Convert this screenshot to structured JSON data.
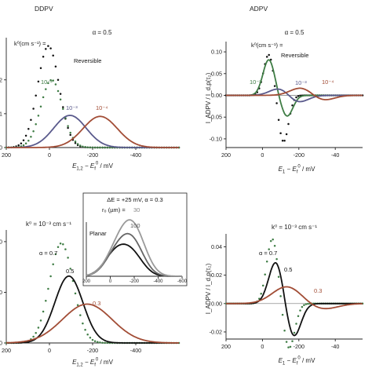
{
  "headers": {
    "left": "DDPV",
    "right": "ADPV"
  },
  "colors": {
    "black": "#111111",
    "green": "#3f7d45",
    "blue": "#5a5a8c",
    "red": "#a24d36",
    "gray": "#888888"
  },
  "chart_data": [
    {
      "id": "tl",
      "type": "line",
      "title": "α = 0.5",
      "xlabel_main": "E",
      "xlabel_sub": "1,2",
      "xlabel_mid": " − E",
      "xlabel_sub2": "f",
      "xlabel_sup2": "0",
      "xlabel_tail": " / mV",
      "ylabel": "",
      "x": [
        200,
        0,
        -200,
        -400,
        -600
      ],
      "xticks": [
        "200",
        "0",
        "-200",
        "-400"
      ],
      "xlim": [
        200,
        -600
      ],
      "ylim": [
        0,
        0.32
      ],
      "yticks": [
        ".2",
        ".1",
        "0"
      ],
      "ytick_values": [
        0.2,
        0.1,
        0
      ],
      "series": [
        {
          "name": "Reversible",
          "label": "Reversible",
          "color": "#111111",
          "dotted": true,
          "values": [
            0.0,
            0.3,
            0.0,
            0.0,
            0.0
          ],
          "shape": {
            "center": 5,
            "amp": 0.3,
            "sigma": 50
          }
        },
        {
          "name": "10⁻²",
          "label": "10⁻²",
          "color": "#3f7d45",
          "dotted": true,
          "values": [
            0.0,
            0.2,
            0.0,
            0.0,
            0.0
          ],
          "shape": {
            "center": -10,
            "amp": 0.2,
            "sigma": 50
          }
        },
        {
          "name": "10⁻³",
          "label": "10⁻³",
          "color": "#5a5a8c",
          "dotted": false,
          "values": [
            0.0,
            0.06,
            0.095,
            0.0,
            0.0
          ],
          "shape": {
            "center": -95,
            "amp": 0.095,
            "sigma": 75
          }
        },
        {
          "name": "10⁻⁴",
          "label": "10⁻⁴",
          "color": "#a24d36",
          "dotted": false,
          "values": [
            0.0,
            0.0,
            0.092,
            0.0,
            0.0
          ],
          "shape": {
            "center": -235,
            "amp": 0.092,
            "sigma": 80
          }
        }
      ],
      "annotation": "k⁰(cm s⁻¹) ="
    },
    {
      "id": "tr",
      "type": "line",
      "title": "α = 0.5",
      "xlabel_main": "E",
      "xlabel_sub": "1",
      "xlabel_mid": " − E",
      "xlabel_sub2": "f",
      "xlabel_sup2": "0",
      "xlabel_tail": " / mV",
      "ylabel": "I_ADPV / I_d,p(τ₂)",
      "xticks": [
        "200",
        "0",
        "-200",
        "-40"
      ],
      "xlim": [
        200,
        -550
      ],
      "ylim": [
        -0.12,
        0.12
      ],
      "yticks": [
        "0.10",
        "0.05",
        "0.00",
        "-0.05",
        "-0.10"
      ],
      "ytick_values": [
        0.1,
        0.05,
        0.0,
        -0.05,
        -0.1
      ],
      "series": [
        {
          "name": "Reversible",
          "label": "Reversible",
          "color": "#111111",
          "dotted": true,
          "shape": {
            "pos": -35,
            "neg": -115,
            "ampPos": 0.095,
            "ampNeg": 0.108,
            "sigma": 28
          }
        },
        {
          "name": "10⁻²",
          "label": "10⁻²",
          "color": "#3f7d45",
          "dotted": false,
          "shape": {
            "pos": -35,
            "neg": -135,
            "ampPos": 0.082,
            "ampNeg": 0.048,
            "sigma": 32
          }
        },
        {
          "name": "10⁻³",
          "label": "10⁻³",
          "color": "#5a5a8c",
          "dotted": false,
          "shape": {
            "pos": -100,
            "neg": -190,
            "ampPos": 0.018,
            "ampNeg": 0.018,
            "sigma": 55
          }
        },
        {
          "name": "10⁻⁴",
          "label": "10⁻⁴",
          "color": "#a24d36",
          "dotted": false,
          "shape": {
            "pos": -215,
            "neg": -330,
            "ampPos": 0.018,
            "ampNeg": 0.012,
            "sigma": 60
          }
        }
      ],
      "annotation": "k⁰(cm s⁻¹) ="
    },
    {
      "id": "bl",
      "type": "line",
      "title": "k⁰ = 10⁻³ cm s⁻¹",
      "xlabel_main": "E",
      "xlabel_sub": "1,2",
      "xlabel_mid": " − E",
      "xlabel_sub2": "f",
      "xlabel_sup2": "0",
      "xlabel_tail": " / mV",
      "ylabel": "",
      "xticks": [
        "200",
        "0",
        "-200",
        "-400"
      ],
      "xlim": [
        200,
        -600
      ],
      "ylim": [
        0,
        0.33
      ],
      "yticks": [
        "00",
        "50",
        "00"
      ],
      "ytick_values": [
        0.3,
        0.15,
        0.0
      ],
      "series": [
        {
          "name": "α = 0.7",
          "label": "α = 0.7",
          "color": "#3f7d45",
          "dotted": true,
          "shape": {
            "center": -55,
            "amp": 0.295,
            "sigma": 55
          }
        },
        {
          "name": "0.5",
          "label": "0.5",
          "color": "#111111",
          "dotted": false,
          "shape": {
            "center": -90,
            "amp": 0.198,
            "sigma": 65
          }
        },
        {
          "name": "0.3",
          "label": "0.3",
          "color": "#a24d36",
          "dotted": false,
          "shape": {
            "center": -175,
            "amp": 0.115,
            "sigma": 115
          }
        }
      ]
    },
    {
      "id": "inset",
      "type": "line",
      "title": "ΔE = +25 mV, α = 0.3",
      "xlabel_main": "",
      "ylabel": "",
      "xticks": [
        "200",
        "0",
        "-200",
        "-400",
        "-600"
      ],
      "xlim": [
        200,
        -600
      ],
      "ylim": [
        0,
        1
      ],
      "series": [
        {
          "name": "Planar",
          "label": "Planar",
          "color": "#111111",
          "dotted": false,
          "shape": {
            "bump1": -40,
            "a1": 0.4,
            "bump2": -180,
            "a2": 0.4,
            "sigma": 95
          }
        },
        {
          "name": "100",
          "label": "100",
          "color": "#666666",
          "dotted": false,
          "shape": {
            "bump1": -50,
            "a1": 0.4,
            "bump2": -185,
            "a2": 0.62,
            "sigma": 95
          }
        },
        {
          "name": "30",
          "label": "30",
          "color": "#9a9a9a",
          "dotted": false,
          "shape": {
            "bump1": -60,
            "a1": 0.45,
            "bump2": -195,
            "a2": 0.85,
            "sigma": 100
          }
        }
      ],
      "annotation": "r₀ (µm) ="
    },
    {
      "id": "br",
      "type": "line",
      "title": "k⁰ = 10⁻³ cm s⁻¹",
      "xlabel_main": "E",
      "xlabel_sub": "1",
      "xlabel_mid": " − E",
      "xlabel_sub2": "f",
      "xlabel_sup2": "0",
      "xlabel_tail": " / mV",
      "ylabel": "I_ADPV / I_d,p(τ₂)",
      "xticks": [
        "200",
        "0",
        "-200",
        "-40"
      ],
      "xlim": [
        200,
        -550
      ],
      "ylim": [
        -0.025,
        0.048
      ],
      "yticks": [
        "0.04",
        "0.02",
        "0.00",
        "-0.02"
      ],
      "ytick_values": [
        0.04,
        0.02,
        0.0,
        -0.02
      ],
      "series": [
        {
          "name": "α = 0.7",
          "label": "α = 0.7",
          "color": "#3f7d45",
          "dotted": true,
          "shape": {
            "pos": -55,
            "neg": -145,
            "ampPos": 0.046,
            "ampNeg": 0.032,
            "sigma": 32
          }
        },
        {
          "name": "0.5",
          "label": "0.5",
          "color": "#111111",
          "dotted": false,
          "shape": {
            "pos": -75,
            "neg": -170,
            "ampPos": 0.03,
            "ampNeg": 0.024,
            "sigma": 40
          }
        },
        {
          "name": "0.3",
          "label": "0.3",
          "color": "#a24d36",
          "dotted": false,
          "shape": {
            "pos": -135,
            "neg": -330,
            "ampPos": 0.012,
            "ampNeg": 0.004,
            "sigma": 80
          }
        }
      ]
    }
  ]
}
